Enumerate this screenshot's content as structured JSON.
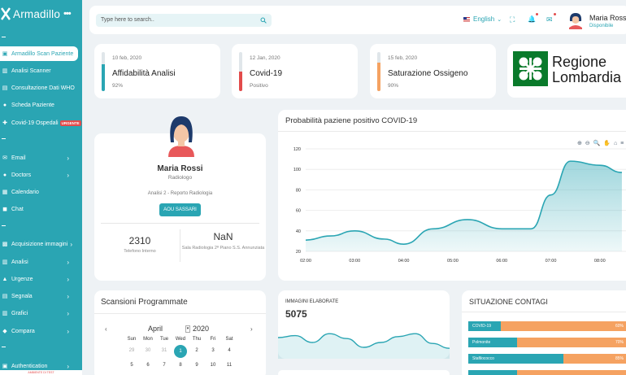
{
  "app": {
    "name": "Armadillo",
    "menu_glyph": "•••"
  },
  "sidebar": {
    "items": [
      {
        "label": "Armadillo Scan Paziente",
        "icon": "scan-icon",
        "glyph": "▣"
      },
      {
        "label": "Analisi Scanner",
        "icon": "chart-icon",
        "glyph": "▥"
      },
      {
        "label": "Consultazione Dati WHO",
        "icon": "database-icon",
        "glyph": "▤"
      },
      {
        "label": "Scheda Paziente",
        "icon": "user-icon",
        "glyph": "●"
      },
      {
        "label": "Covid-19 Ospedali",
        "icon": "hospital-icon",
        "glyph": "✚",
        "badge": "URGENTE"
      },
      {
        "label": "Email",
        "icon": "mail-icon",
        "glyph": "✉"
      },
      {
        "label": "Doctors",
        "icon": "doctor-icon",
        "glyph": "●"
      },
      {
        "label": "Calendario",
        "icon": "calendar-icon",
        "glyph": "▦"
      },
      {
        "label": "Chat",
        "icon": "chat-icon",
        "glyph": "◼"
      },
      {
        "label": "Acquisizione immagini",
        "icon": "image-icon",
        "glyph": "▩"
      },
      {
        "label": "Analisi",
        "icon": "analysis-icon",
        "glyph": "▥"
      },
      {
        "label": "Urgenze",
        "icon": "urgent-icon",
        "glyph": "▲"
      },
      {
        "label": "Segnala",
        "icon": "report-icon",
        "glyph": "▤"
      },
      {
        "label": "Grafici",
        "icon": "graph-icon",
        "glyph": "▥"
      },
      {
        "label": "Compara",
        "icon": "compare-icon",
        "glyph": "◆"
      },
      {
        "label": "Authentication",
        "icon": "lock-icon",
        "glyph": "▣"
      }
    ],
    "chevron": "›",
    "env_label": "AMBIENTE DI TEST"
  },
  "topbar": {
    "search_placeholder": "Type here to search..",
    "language": "English",
    "lang_chevron": "⌄",
    "icons": {
      "fullscreen": "⛶",
      "bell": "🔔",
      "mail": "✉"
    },
    "user_name": "Maria Rossi",
    "user_status": "Disponibile"
  },
  "stats": [
    {
      "date": "10 feb, 2020",
      "title": "Affidabilità Analisi",
      "value": "92%",
      "fill": 0.68,
      "color": "#2aa5b3"
    },
    {
      "date": "12 Jan, 2020",
      "title": "Covid-19",
      "value": "Positivo",
      "fill": 0.5,
      "color": "#e24b4b"
    },
    {
      "date": "15 feb, 2020",
      "title": "Saturazione Ossigeno",
      "value": "90%",
      "fill": 0.72,
      "color": "#f5a261"
    }
  ],
  "regione": {
    "line1": "Regione",
    "line2": "Lombardia"
  },
  "profile": {
    "name": "Maria Rossi",
    "role": "Radiologo",
    "report": "Analisi 2 - Reporto Radiologia",
    "button": "AOU SASSARI",
    "phone": "2310",
    "phone_label": "Telefono Interno",
    "room": "NaN",
    "room_label": "Sala Radiologia 2ª Piano S.S. Annunziata"
  },
  "chart_data": {
    "type": "area",
    "title": "Probabilità paziene positivo COVID-19",
    "x": [
      "02:00",
      "03:00",
      "04:00",
      "05:00",
      "06:00",
      "07:00",
      "08:00"
    ],
    "ylim": [
      20,
      120
    ],
    "yticks": [
      20,
      40,
      60,
      80,
      100,
      120
    ],
    "points": [
      [
        0,
        31
      ],
      [
        0.5,
        35
      ],
      [
        1,
        40
      ],
      [
        1.6,
        32
      ],
      [
        2,
        27
      ],
      [
        2.6,
        42
      ],
      [
        3.3,
        51
      ],
      [
        4,
        42
      ],
      [
        4.6,
        42
      ],
      [
        5,
        75
      ],
      [
        5.4,
        108
      ],
      [
        6,
        104
      ],
      [
        6.45,
        97
      ]
    ],
    "color": "#2aa5b3",
    "toolbar": "⊕ ⊖ 🔍 ✋ ⌂ ≡"
  },
  "scansioni": {
    "title": "Scansioni Programmate",
    "month": "April",
    "year": "2020",
    "prev": "‹",
    "next": "›",
    "select_glyph": "▾",
    "dow": [
      "Sun",
      "Mon",
      "Tue",
      "Wed",
      "Thu",
      "Fri",
      "Sat"
    ],
    "week1": [
      "29",
      "30",
      "31",
      "1",
      "2",
      "3",
      "4"
    ],
    "week2": [
      "5",
      "6",
      "7",
      "8",
      "9",
      "10",
      "11"
    ]
  },
  "immagini": {
    "title": "IMMAGINI ELABORATE",
    "value": "5075",
    "spark": [
      40,
      44,
      30,
      48,
      38,
      20,
      30,
      42,
      48,
      28,
      18
    ]
  },
  "contagi": {
    "title": "SITUAZIONE CONTAGI",
    "rows": [
      {
        "label": "COVID-19",
        "pct": "60%",
        "fill": 0.2
      },
      {
        "label": "Polmonite",
        "pct": "70%",
        "fill": 0.3
      },
      {
        "label": "Stafilococco",
        "pct": "85%",
        "fill": 0.59
      },
      {
        "label": "",
        "pct": "",
        "fill": 0.3
      }
    ]
  }
}
